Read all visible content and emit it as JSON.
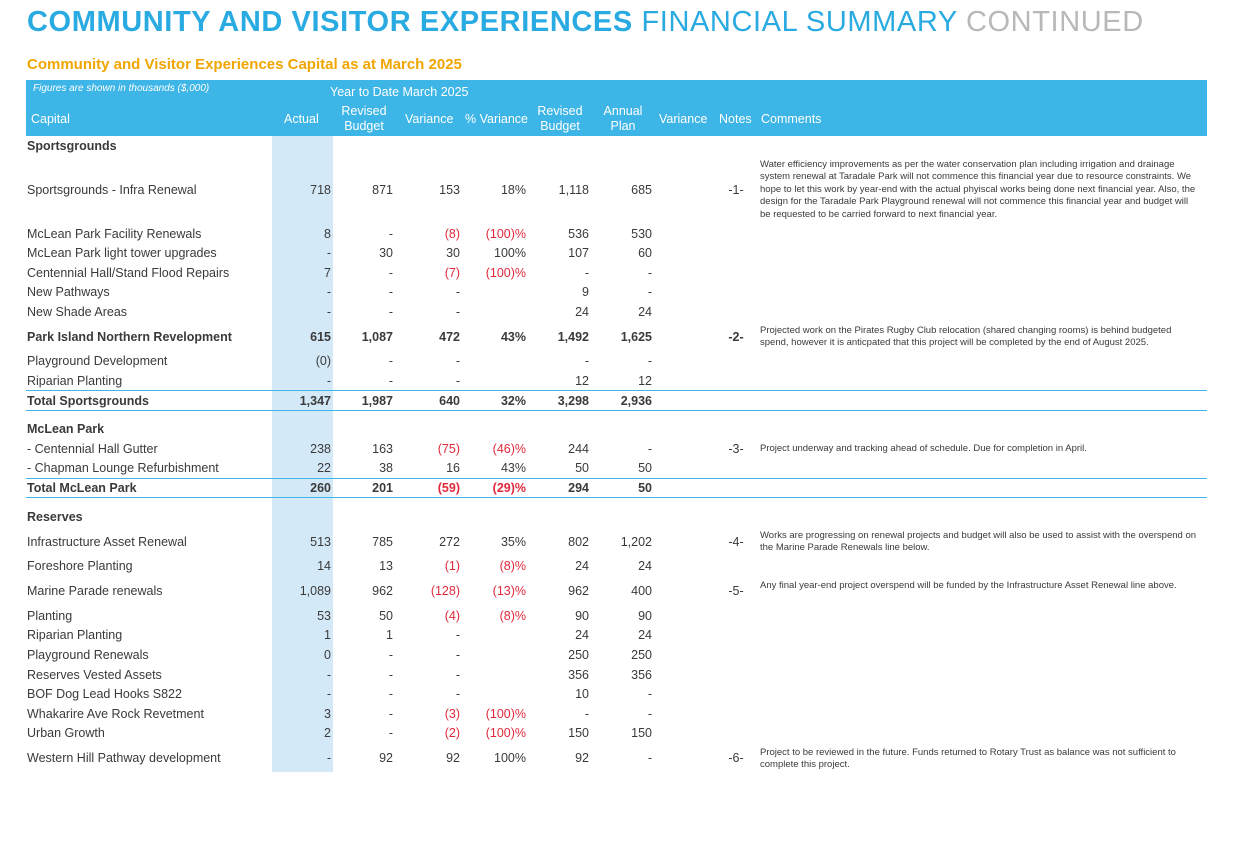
{
  "page": {
    "title_bold": "COMMUNITY AND VISITOR EXPERIENCES",
    "title_light": "FINANCIAL SUMMARY",
    "title_grey": "CONTINUED",
    "subtitle": "Community and Visitor Experiences Capital as at March 2025"
  },
  "header": {
    "figures_note": "Figures are shown in thousands ($,000)",
    "ytd": "Year to Date  March 2025",
    "capital": "Capital",
    "actual": "Actual",
    "revised_budget": "Revised Budget",
    "variance": "Variance",
    "pct_variance": "% Variance",
    "revised_budget2": "Revised Budget",
    "annual_plan": "Annual Plan",
    "variance2": "Variance",
    "notes": "Notes",
    "comments": "Comments"
  },
  "rows": [
    {
      "label": "Sportsgrounds",
      "type": "section"
    },
    {
      "label": "Sportsgrounds - Infra Renewal",
      "actual": "718",
      "revised": "871",
      "variance": "153",
      "pct": "18%",
      "rb": "1,118",
      "ap": "685",
      "note": "-1-"
    },
    {
      "label": "McLean Park Facility Renewals",
      "actual": "8",
      "revised": "-",
      "variance": "(8)",
      "pct": "(100)%",
      "rb": "536",
      "ap": "530"
    },
    {
      "label": "McLean Park light tower upgrades",
      "actual": "-",
      "revised": "30",
      "variance": "30",
      "pct": "100%",
      "rb": "107",
      "ap": "60"
    },
    {
      "label": "Centennial Hall/Stand Flood Repairs",
      "actual": "7",
      "revised": "-",
      "variance": "(7)",
      "pct": "(100)%",
      "rb": "-",
      "ap": "-"
    },
    {
      "label": "New Pathways",
      "actual": "-",
      "revised": "-",
      "variance": "-",
      "pct": "",
      "rb": "9",
      "ap": "-"
    },
    {
      "label": "New Shade Areas",
      "actual": "-",
      "revised": "-",
      "variance": "-",
      "pct": "",
      "rb": "24",
      "ap": "24"
    },
    {
      "label": "Park Island Northern Revelopment",
      "actual": "615",
      "revised": "1,087",
      "variance": "472",
      "pct": "43%",
      "rb": "1,492",
      "ap": "1,625",
      "note": "-2-",
      "type": "semibold"
    },
    {
      "label": "Playground Development",
      "actual": "(0)",
      "revised": "-",
      "variance": "-",
      "pct": "",
      "rb": "-",
      "ap": "-"
    },
    {
      "label": "Riparian Planting",
      "actual": "-",
      "revised": "-",
      "variance": "-",
      "pct": "",
      "rb": "12",
      "ap": "12"
    },
    {
      "label": "Total Sportsgrounds",
      "actual": "1,347",
      "revised": "1,987",
      "variance": "640",
      "pct": "32%",
      "rb": "3,298",
      "ap": "2,936",
      "type": "total"
    },
    {
      "label": "McLean Park",
      "type": "section"
    },
    {
      "label": "- Centennial Hall Gutter",
      "actual": "238",
      "revised": "163",
      "variance": "(75)",
      "pct": "(46)%",
      "rb": "244",
      "ap": "-",
      "note": "-3-"
    },
    {
      "label": " - Chapman Lounge Refurbishment",
      "actual": "22",
      "revised": "38",
      "variance": "16",
      "pct": "43%",
      "rb": "50",
      "ap": "50"
    },
    {
      "label": "Total McLean Park",
      "actual": "260",
      "revised": "201",
      "variance": "(59)",
      "pct": "(29)%",
      "rb": "294",
      "ap": "50",
      "type": "total"
    },
    {
      "label": "Reserves",
      "type": "section"
    },
    {
      "label": "Infrastructure Asset Renewal",
      "actual": "513",
      "revised": "785",
      "variance": "272",
      "pct": "35%",
      "rb": "802",
      "ap": "1,202",
      "note": "-4-"
    },
    {
      "label": "Foreshore Planting",
      "actual": "14",
      "revised": "13",
      "variance": "(1)",
      "pct": "(8)%",
      "rb": "24",
      "ap": "24"
    },
    {
      "label": "Marine Parade renewals",
      "actual": "1,089",
      "revised": "962",
      "variance": "(128)",
      "pct": "(13)%",
      "rb": "962",
      "ap": "400",
      "note": "-5-"
    },
    {
      "label": "Planting",
      "actual": "53",
      "revised": "50",
      "variance": "(4)",
      "pct": "(8)%",
      "rb": "90",
      "ap": "90"
    },
    {
      "label": "Riparian Planting",
      "actual": "1",
      "revised": "1",
      "variance": "-",
      "pct": "",
      "rb": "24",
      "ap": "24"
    },
    {
      "label": "Playground Renewals",
      "actual": "0",
      "revised": "-",
      "variance": "-",
      "pct": "",
      "rb": "250",
      "ap": "250"
    },
    {
      "label": "Reserves Vested Assets",
      "actual": "-",
      "revised": "-",
      "variance": "-",
      "pct": "",
      "rb": "356",
      "ap": "356"
    },
    {
      "label": "BOF Dog Lead Hooks S822",
      "actual": "-",
      "revised": "-",
      "variance": "-",
      "pct": "",
      "rb": "10",
      "ap": "-"
    },
    {
      "label": "Whakarire Ave Rock Revetment",
      "actual": "3",
      "revised": "-",
      "variance": "(3)",
      "pct": "(100)%",
      "rb": "-",
      "ap": "-"
    },
    {
      "label": "Urban Growth",
      "actual": "2",
      "revised": "-",
      "variance": "(2)",
      "pct": "(100)%",
      "rb": "150",
      "ap": "150"
    },
    {
      "label": "Western Hill Pathway development",
      "actual": "-",
      "revised": "92",
      "variance": "92",
      "pct": "100%",
      "rb": "92",
      "ap": "-",
      "note": "-6-"
    }
  ],
  "comments": [
    "Water efficiency improvements as per the water conservation plan including irrigation and drainage system renewal at Taradale Park will not commence this financial year due to resource constraints. We hope to let this work by year-end with the actual phyiscal works being done next financial year. Also, the design for the Taradale Park Playground renewal will not commence this financial year and budget will be requested to be carried forward to next financial year.",
    "Projected work on the Pirates Rugby Club relocation (shared changing rooms) is behind budgeted spend, however it is anticpated that this project will be completed by the end of August 2025.",
    "Project underway and tracking ahead of schedule. Due for completion in April.",
    "Works are progressing on renewal projects and budget will also be used to assist with the overspend on the Marine Parade Renewals line below.",
    "Any final year-end project overspend will be funded by the Infrastructure Asset Renewal line above.",
    "Project to be reviewed in the future. Funds returned to Rotary Trust as balance was not sufficient to complete this project."
  ],
  "colors": {
    "accent": "#29abe2",
    "header_bg": "#3db5e6",
    "subtitle": "#f0a500",
    "negative": "#e0293c",
    "actual_band": "#d4e9f7"
  }
}
